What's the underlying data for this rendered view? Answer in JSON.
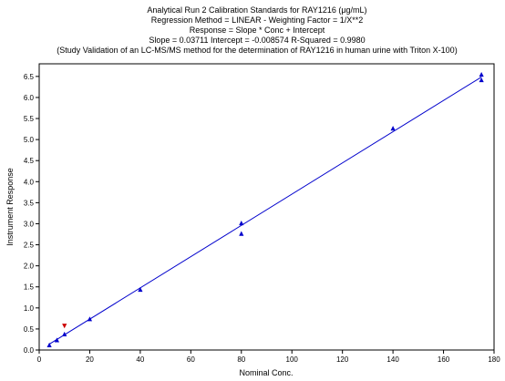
{
  "chart_data": {
    "type": "scatter",
    "title_lines": [
      "Analytical Run 2 Calibration Standards for RAY1216 (μg/mL)",
      "Regression Method = LINEAR - Weighting Factor = 1/X**2",
      "Response = Slope * Conc + Intercept",
      "Slope = 0.03711 Intercept = -0.008574 R-Squared = 0.9980",
      "(Study Validation of an LC-MS/MS method for the determination of  RAY1216 in human urine with Triton X-100)"
    ],
    "xlabel": "Nominal Conc.",
    "ylabel": "Instrument Response",
    "xlim": [
      0,
      180
    ],
    "ylim": [
      0,
      6.8
    ],
    "x_ticks": [
      0,
      20,
      40,
      60,
      80,
      100,
      120,
      140,
      160,
      180
    ],
    "x_tick_labels": [
      "0",
      "20",
      "40",
      "60",
      "80",
      "100",
      "120",
      "140",
      "160",
      "180"
    ],
    "y_ticks": [
      0,
      0.5,
      1,
      1.5,
      2,
      2.5,
      3,
      3.5,
      4,
      4.5,
      5,
      5.5,
      6,
      6.5
    ],
    "y_tick_labels": [
      "0.0",
      "0.5",
      "1.0",
      "1.5",
      "2.0",
      "2.5",
      "3.0",
      "3.5",
      "4.0",
      "4.5",
      "5.0",
      "5.5",
      "6.0",
      "6.5"
    ],
    "grid": false,
    "regression": {
      "slope": 0.03711,
      "intercept": -0.008574,
      "x_range": [
        4,
        175
      ],
      "color": "#0000cc"
    },
    "series": [
      {
        "marker": "triangle-up",
        "color": "#0000cc",
        "points": [
          [
            4,
            0.12
          ],
          [
            7,
            0.24
          ],
          [
            10,
            0.38
          ],
          [
            20,
            0.74
          ],
          [
            40,
            1.44
          ],
          [
            80,
            3.02
          ],
          [
            80,
            2.77
          ],
          [
            140,
            5.27
          ],
          [
            175,
            6.55
          ],
          [
            175,
            6.42
          ]
        ]
      },
      {
        "marker": "triangle-down",
        "color": "#cc0000",
        "points": [
          [
            10,
            0.57
          ]
        ]
      }
    ]
  }
}
